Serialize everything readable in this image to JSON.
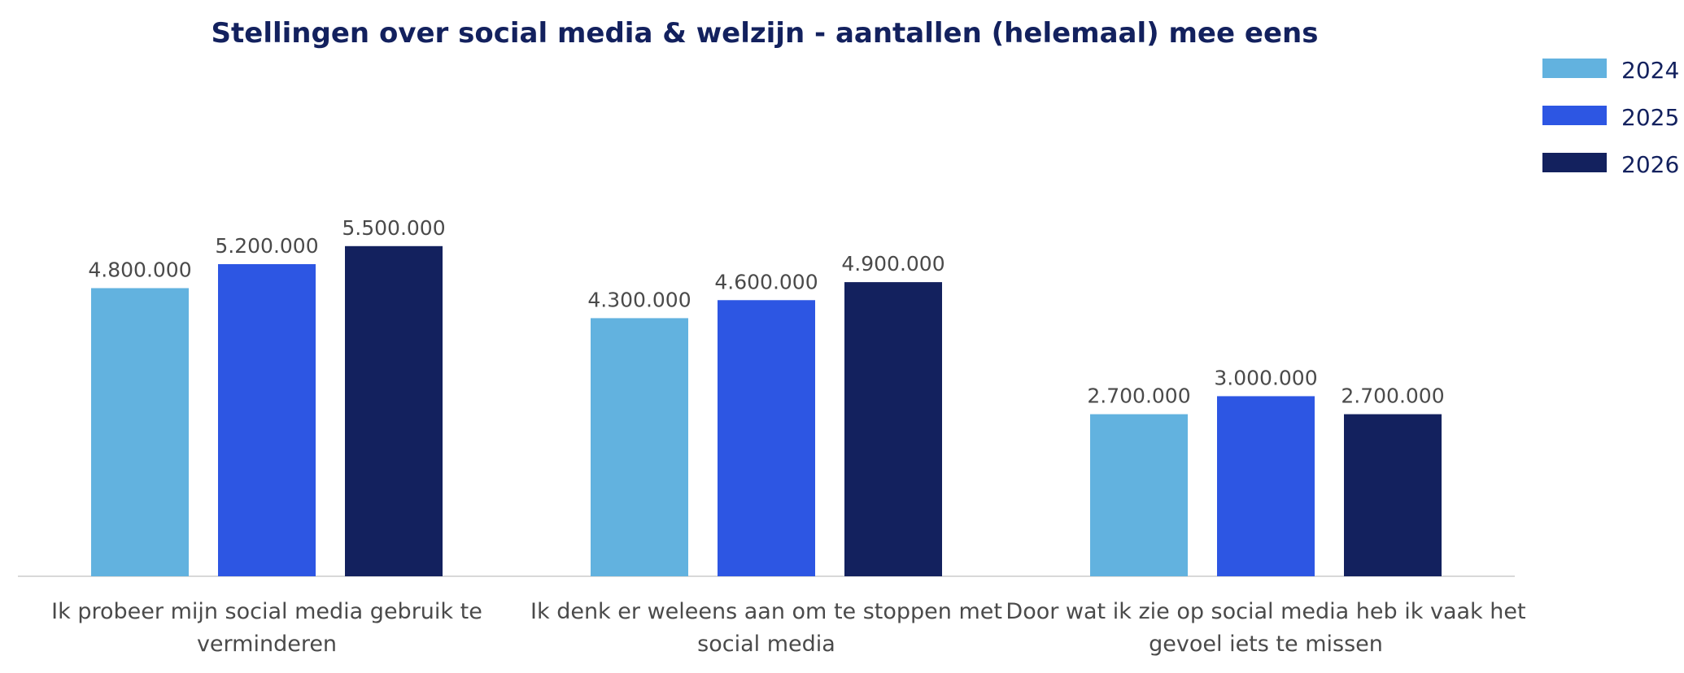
{
  "chart_data": {
    "type": "bar",
    "title": "Stellingen over social media & welzijn - aantallen (helemaal) mee eens",
    "categories": [
      [
        "Ik probeer mijn social media gebruik te",
        "verminderen"
      ],
      [
        "Ik denk er weleens aan om te stoppen met",
        "social media"
      ],
      [
        "Door wat ik zie op social media heb ik vaak het",
        "gevoel iets te missen"
      ]
    ],
    "series": [
      {
        "name": "2024",
        "color": "#62b2df",
        "values": [
          4800000,
          4300000,
          2700000
        ],
        "labels": [
          "4.800.000",
          "4.300.000",
          "2.700.000"
        ]
      },
      {
        "name": "2025",
        "color": "#2d56e3",
        "values": [
          5200000,
          4600000,
          3000000
        ],
        "labels": [
          "5.200.000",
          "4.600.000",
          "3.000.000"
        ]
      },
      {
        "name": "2026",
        "color": "#13215e",
        "values": [
          5500000,
          4900000,
          2700000
        ],
        "labels": [
          "5.500.000",
          "4.900.000",
          "2.700.000"
        ]
      }
    ],
    "xlabel": "",
    "ylabel": "",
    "ylim": [
      0,
      9600000
    ],
    "legend": "top-right",
    "grid": false
  }
}
